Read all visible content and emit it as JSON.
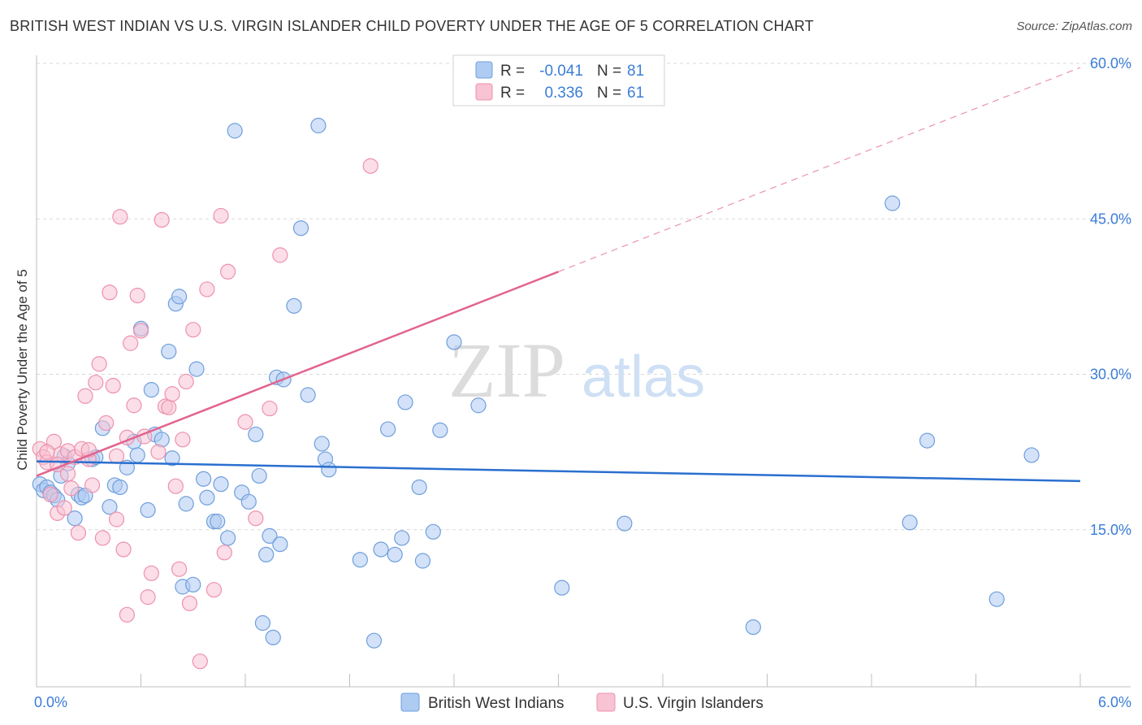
{
  "title": "BRITISH WEST INDIAN VS U.S. VIRGIN ISLANDER CHILD POVERTY UNDER THE AGE OF 5 CORRELATION CHART",
  "source": "Source: ZipAtlas.com",
  "watermark": {
    "zip": "ZIP",
    "atlas": "atlas"
  },
  "colors": {
    "blue_fill": "#aecbf2",
    "blue_stroke": "#6f9fdc",
    "blue_line": "#2a6fcf",
    "pink_fill": "#f8c3d3",
    "pink_stroke": "#ee91ad",
    "pink_line": "#e2648e",
    "grid": "#d9d9d9",
    "tick_text": "#3b7dd8"
  },
  "legend": {
    "rows": [
      {
        "r_label": "R =",
        "r_value": "-0.041",
        "n_label": "N =",
        "n_value": "81"
      },
      {
        "r_label": "R =",
        "r_value": "0.336",
        "n_label": "N =",
        "n_value": "61"
      }
    ]
  },
  "chart_data": {
    "type": "scatter",
    "title": "BRITISH WEST INDIAN VS U.S. VIRGIN ISLANDER CHILD POVERTY UNDER THE AGE OF 5 CORRELATION CHART",
    "xlabel": "",
    "ylabel": "Child Poverty Under the Age of 5",
    "xlim": [
      0,
      6
    ],
    "ylim": [
      0,
      60
    ],
    "x_tick_labels": [
      "0.0%",
      "6.0%"
    ],
    "y_ticks": [
      15,
      30,
      45,
      60
    ],
    "y_tick_labels": [
      "15.0%",
      "30.0%",
      "45.0%",
      "60.0%"
    ],
    "grid": true,
    "legend_position": "top-center",
    "series": [
      {
        "name": "British West Indians",
        "r": -0.041,
        "n": 81,
        "trend": {
          "x": [
            0.0,
            6.0
          ],
          "y": [
            21.6,
            19.7
          ]
        },
        "points": [
          [
            0.02,
            19.4
          ],
          [
            0.04,
            18.8
          ],
          [
            0.06,
            19.1
          ],
          [
            0.08,
            18.6
          ],
          [
            0.1,
            18.3
          ],
          [
            0.12,
            17.9
          ],
          [
            0.14,
            20.2
          ],
          [
            0.16,
            22.1
          ],
          [
            0.18,
            21.4
          ],
          [
            0.22,
            16.1
          ],
          [
            0.24,
            18.4
          ],
          [
            0.26,
            18.1
          ],
          [
            0.28,
            18.3
          ],
          [
            0.32,
            21.8
          ],
          [
            0.34,
            22.0
          ],
          [
            0.38,
            24.8
          ],
          [
            0.42,
            17.2
          ],
          [
            0.45,
            19.3
          ],
          [
            0.48,
            19.1
          ],
          [
            0.52,
            21.0
          ],
          [
            0.56,
            23.5
          ],
          [
            0.58,
            22.2
          ],
          [
            0.6,
            34.4
          ],
          [
            0.64,
            16.9
          ],
          [
            0.66,
            28.5
          ],
          [
            0.68,
            24.2
          ],
          [
            0.72,
            23.7
          ],
          [
            0.76,
            32.2
          ],
          [
            0.78,
            21.9
          ],
          [
            0.8,
            36.8
          ],
          [
            0.82,
            37.5
          ],
          [
            0.84,
            9.5
          ],
          [
            0.86,
            17.5
          ],
          [
            0.9,
            9.7
          ],
          [
            0.92,
            30.5
          ],
          [
            0.96,
            19.9
          ],
          [
            0.98,
            18.1
          ],
          [
            1.02,
            15.8
          ],
          [
            1.04,
            15.8
          ],
          [
            1.06,
            19.4
          ],
          [
            1.1,
            14.2
          ],
          [
            1.14,
            53.5
          ],
          [
            1.18,
            18.6
          ],
          [
            1.22,
            17.7
          ],
          [
            1.26,
            24.2
          ],
          [
            1.28,
            20.2
          ],
          [
            1.3,
            6.0
          ],
          [
            1.32,
            12.6
          ],
          [
            1.34,
            14.4
          ],
          [
            1.36,
            4.6
          ],
          [
            1.38,
            29.7
          ],
          [
            1.4,
            13.6
          ],
          [
            1.42,
            29.5
          ],
          [
            1.48,
            36.6
          ],
          [
            1.52,
            44.1
          ],
          [
            1.56,
            28.0
          ],
          [
            1.62,
            54.0
          ],
          [
            1.64,
            23.3
          ],
          [
            1.66,
            21.8
          ],
          [
            1.68,
            20.8
          ],
          [
            1.86,
            12.1
          ],
          [
            1.94,
            4.3
          ],
          [
            1.98,
            13.1
          ],
          [
            2.02,
            24.7
          ],
          [
            2.06,
            12.6
          ],
          [
            2.1,
            14.2
          ],
          [
            2.12,
            27.3
          ],
          [
            2.2,
            19.1
          ],
          [
            2.22,
            12.0
          ],
          [
            2.28,
            14.8
          ],
          [
            2.32,
            24.6
          ],
          [
            2.4,
            33.1
          ],
          [
            2.54,
            27.0
          ],
          [
            3.02,
            9.4
          ],
          [
            3.38,
            15.6
          ],
          [
            4.12,
            5.6
          ],
          [
            4.92,
            46.5
          ],
          [
            5.02,
            15.7
          ],
          [
            5.12,
            23.6
          ],
          [
            5.52,
            8.3
          ],
          [
            5.72,
            22.2
          ]
        ]
      },
      {
        "name": "U.S. Virgin Islanders",
        "r": 0.336,
        "n": 61,
        "trend": {
          "x": [
            0.0,
            3.0
          ],
          "y": [
            20.2,
            39.9
          ]
        },
        "trend_extended": {
          "x": [
            3.0,
            6.0
          ],
          "y": [
            39.9,
            59.6
          ]
        },
        "points": [
          [
            0.02,
            22.8
          ],
          [
            0.04,
            22.0
          ],
          [
            0.06,
            21.5
          ],
          [
            0.08,
            18.4
          ],
          [
            0.1,
            23.5
          ],
          [
            0.12,
            16.6
          ],
          [
            0.14,
            22.3
          ],
          [
            0.16,
            17.1
          ],
          [
            0.18,
            22.6
          ],
          [
            0.2,
            19.0
          ],
          [
            0.22,
            22.0
          ],
          [
            0.24,
            14.7
          ],
          [
            0.26,
            22.8
          ],
          [
            0.28,
            27.9
          ],
          [
            0.3,
            21.8
          ],
          [
            0.32,
            19.3
          ],
          [
            0.34,
            29.2
          ],
          [
            0.36,
            31.0
          ],
          [
            0.38,
            14.2
          ],
          [
            0.4,
            25.3
          ],
          [
            0.42,
            37.9
          ],
          [
            0.44,
            28.9
          ],
          [
            0.46,
            16.0
          ],
          [
            0.48,
            45.2
          ],
          [
            0.5,
            13.1
          ],
          [
            0.52,
            6.8
          ],
          [
            0.54,
            33.0
          ],
          [
            0.56,
            27.0
          ],
          [
            0.58,
            37.6
          ],
          [
            0.6,
            34.2
          ],
          [
            0.62,
            24.0
          ],
          [
            0.64,
            8.5
          ],
          [
            0.66,
            10.8
          ],
          [
            0.7,
            22.5
          ],
          [
            0.72,
            44.9
          ],
          [
            0.74,
            26.9
          ],
          [
            0.76,
            26.8
          ],
          [
            0.78,
            28.1
          ],
          [
            0.8,
            19.2
          ],
          [
            0.82,
            11.2
          ],
          [
            0.84,
            23.7
          ],
          [
            0.86,
            29.3
          ],
          [
            0.88,
            7.9
          ],
          [
            0.9,
            34.3
          ],
          [
            0.94,
            2.3
          ],
          [
            0.98,
            38.2
          ],
          [
            1.02,
            9.2
          ],
          [
            1.06,
            45.3
          ],
          [
            1.08,
            12.8
          ],
          [
            1.1,
            39.9
          ],
          [
            1.2,
            25.4
          ],
          [
            1.26,
            16.1
          ],
          [
            1.34,
            26.7
          ],
          [
            1.4,
            41.5
          ],
          [
            1.92,
            50.1
          ],
          [
            0.52,
            23.9
          ],
          [
            0.46,
            22.1
          ],
          [
            0.3,
            22.7
          ],
          [
            0.18,
            20.4
          ],
          [
            0.06,
            22.5
          ],
          [
            0.12,
            21.3
          ]
        ]
      }
    ]
  }
}
